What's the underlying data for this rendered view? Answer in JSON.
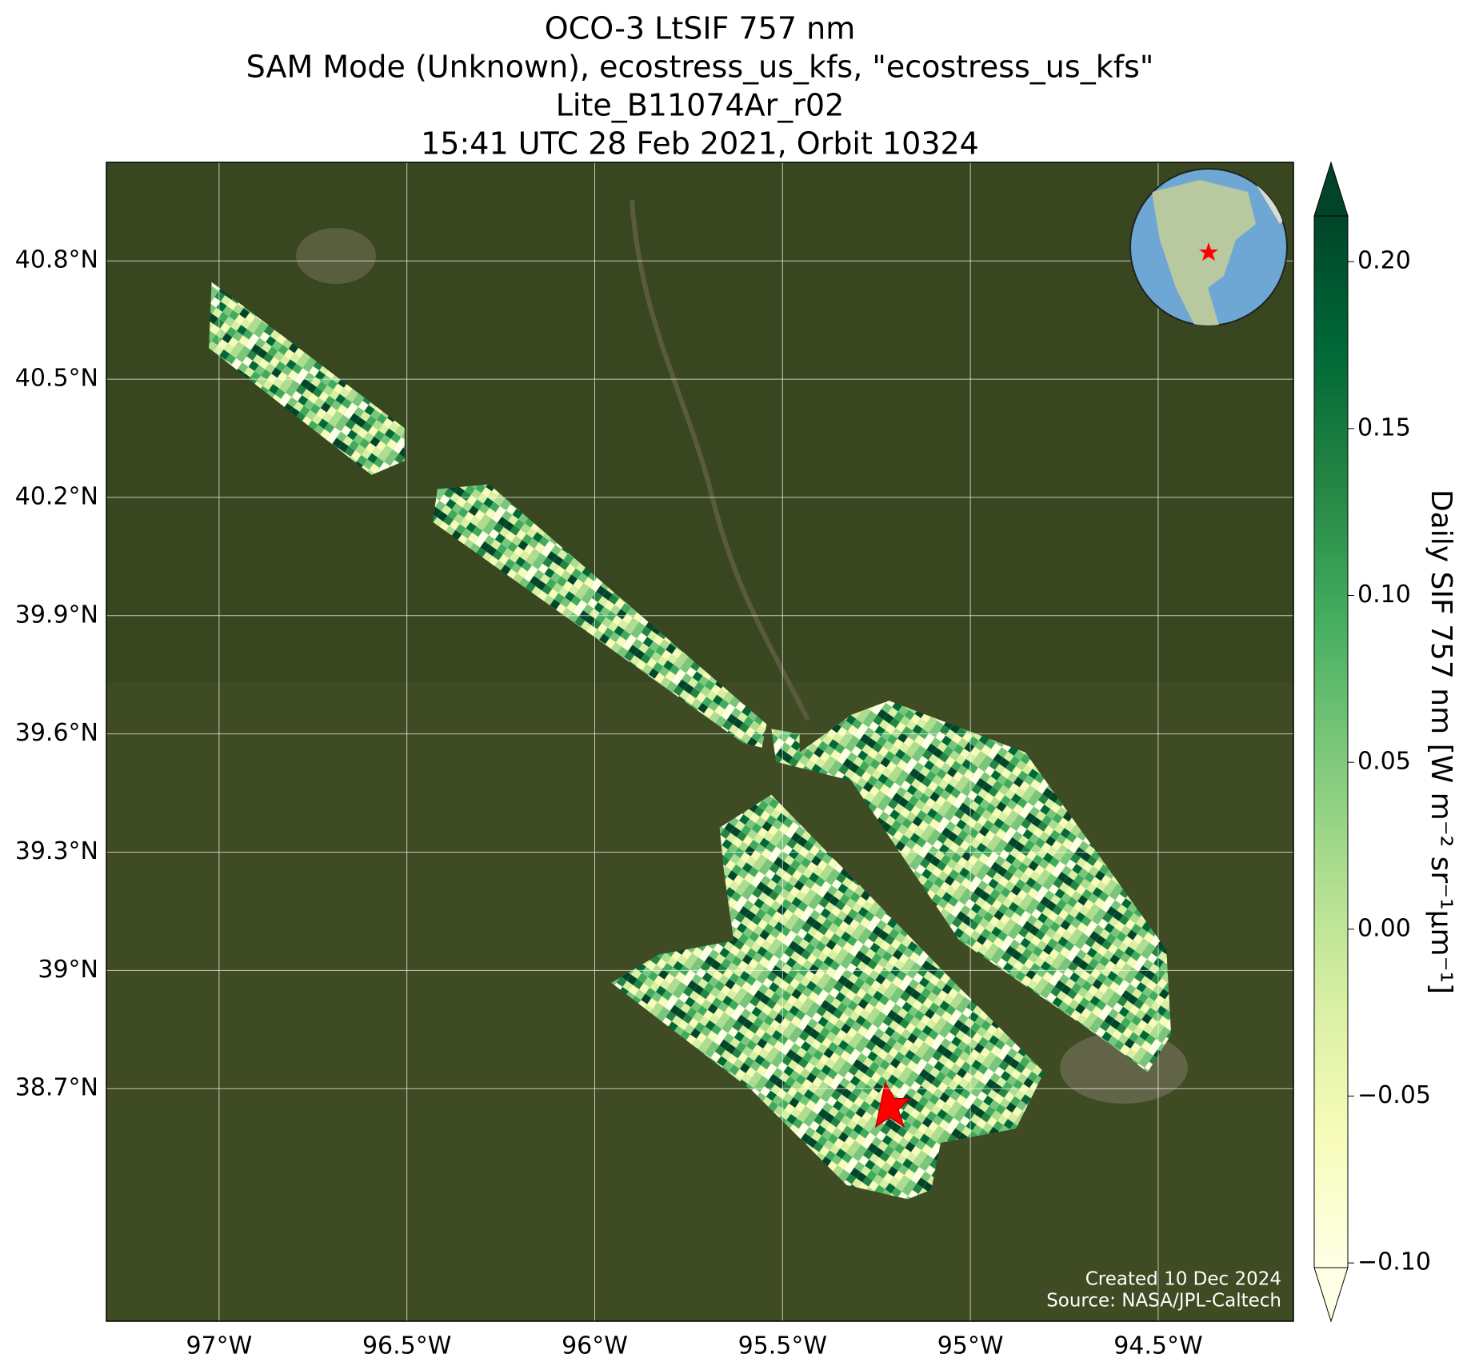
{
  "chart_data": {
    "type": "map",
    "title": [
      "OCO-3 LtSIF 757 nm",
      "SAM Mode (Unknown), ecostress_us_kfs, \"ecostress_us_kfs\"",
      "Lite_B11074Ar_r02",
      "15:41 UTC 28 Feb 2021, Orbit 10324"
    ],
    "xlim": [
      -97.3,
      -94.14
    ],
    "ylim": [
      38.11,
      41.05
    ],
    "xticks": [
      {
        "value": -97,
        "label": "97°W"
      },
      {
        "value": -96.5,
        "label": "96.5°W"
      },
      {
        "value": -96,
        "label": "96°W"
      },
      {
        "value": -95.5,
        "label": "95.5°W"
      },
      {
        "value": -95,
        "label": "95°W"
      },
      {
        "value": -94.5,
        "label": "94.5°W"
      }
    ],
    "yticks": [
      {
        "value": 40.8,
        "label": "40.8°N"
      },
      {
        "value": 40.5,
        "label": "40.5°N"
      },
      {
        "value": 40.2,
        "label": "40.2°N"
      },
      {
        "value": 39.9,
        "label": "39.9°N"
      },
      {
        "value": 39.6,
        "label": "39.6°N"
      },
      {
        "value": 39.3,
        "label": "39.3°N"
      },
      {
        "value": 39,
        "label": "39°N"
      },
      {
        "value": 38.7,
        "label": "38.7°N"
      }
    ],
    "grid": true,
    "colorbar": {
      "label": "Daily SIF 757 nm [W m⁻² sr⁻¹μm⁻¹]",
      "lim": [
        -0.1014,
        0.2137
      ],
      "ticks": [
        {
          "value": -0.1,
          "label": "−0.10"
        },
        {
          "value": -0.05,
          "label": "−0.05"
        },
        {
          "value": 0,
          "label": "0.00"
        },
        {
          "value": 0.05,
          "label": "0.05"
        },
        {
          "value": 0.1,
          "label": "0.10"
        },
        {
          "value": 0.15,
          "label": "0.15"
        },
        {
          "value": 0.2,
          "label": "0.20"
        }
      ],
      "colormap": [
        "#ffffe5",
        "#f7fcb9",
        "#d9f0a3",
        "#addd8e",
        "#78c679",
        "#41ab5d",
        "#238443",
        "#006837",
        "#004529"
      ]
    },
    "credits": [
      "Created 10 Dec 2024",
      "Source: NASA/JPL-Caltech"
    ]
  }
}
